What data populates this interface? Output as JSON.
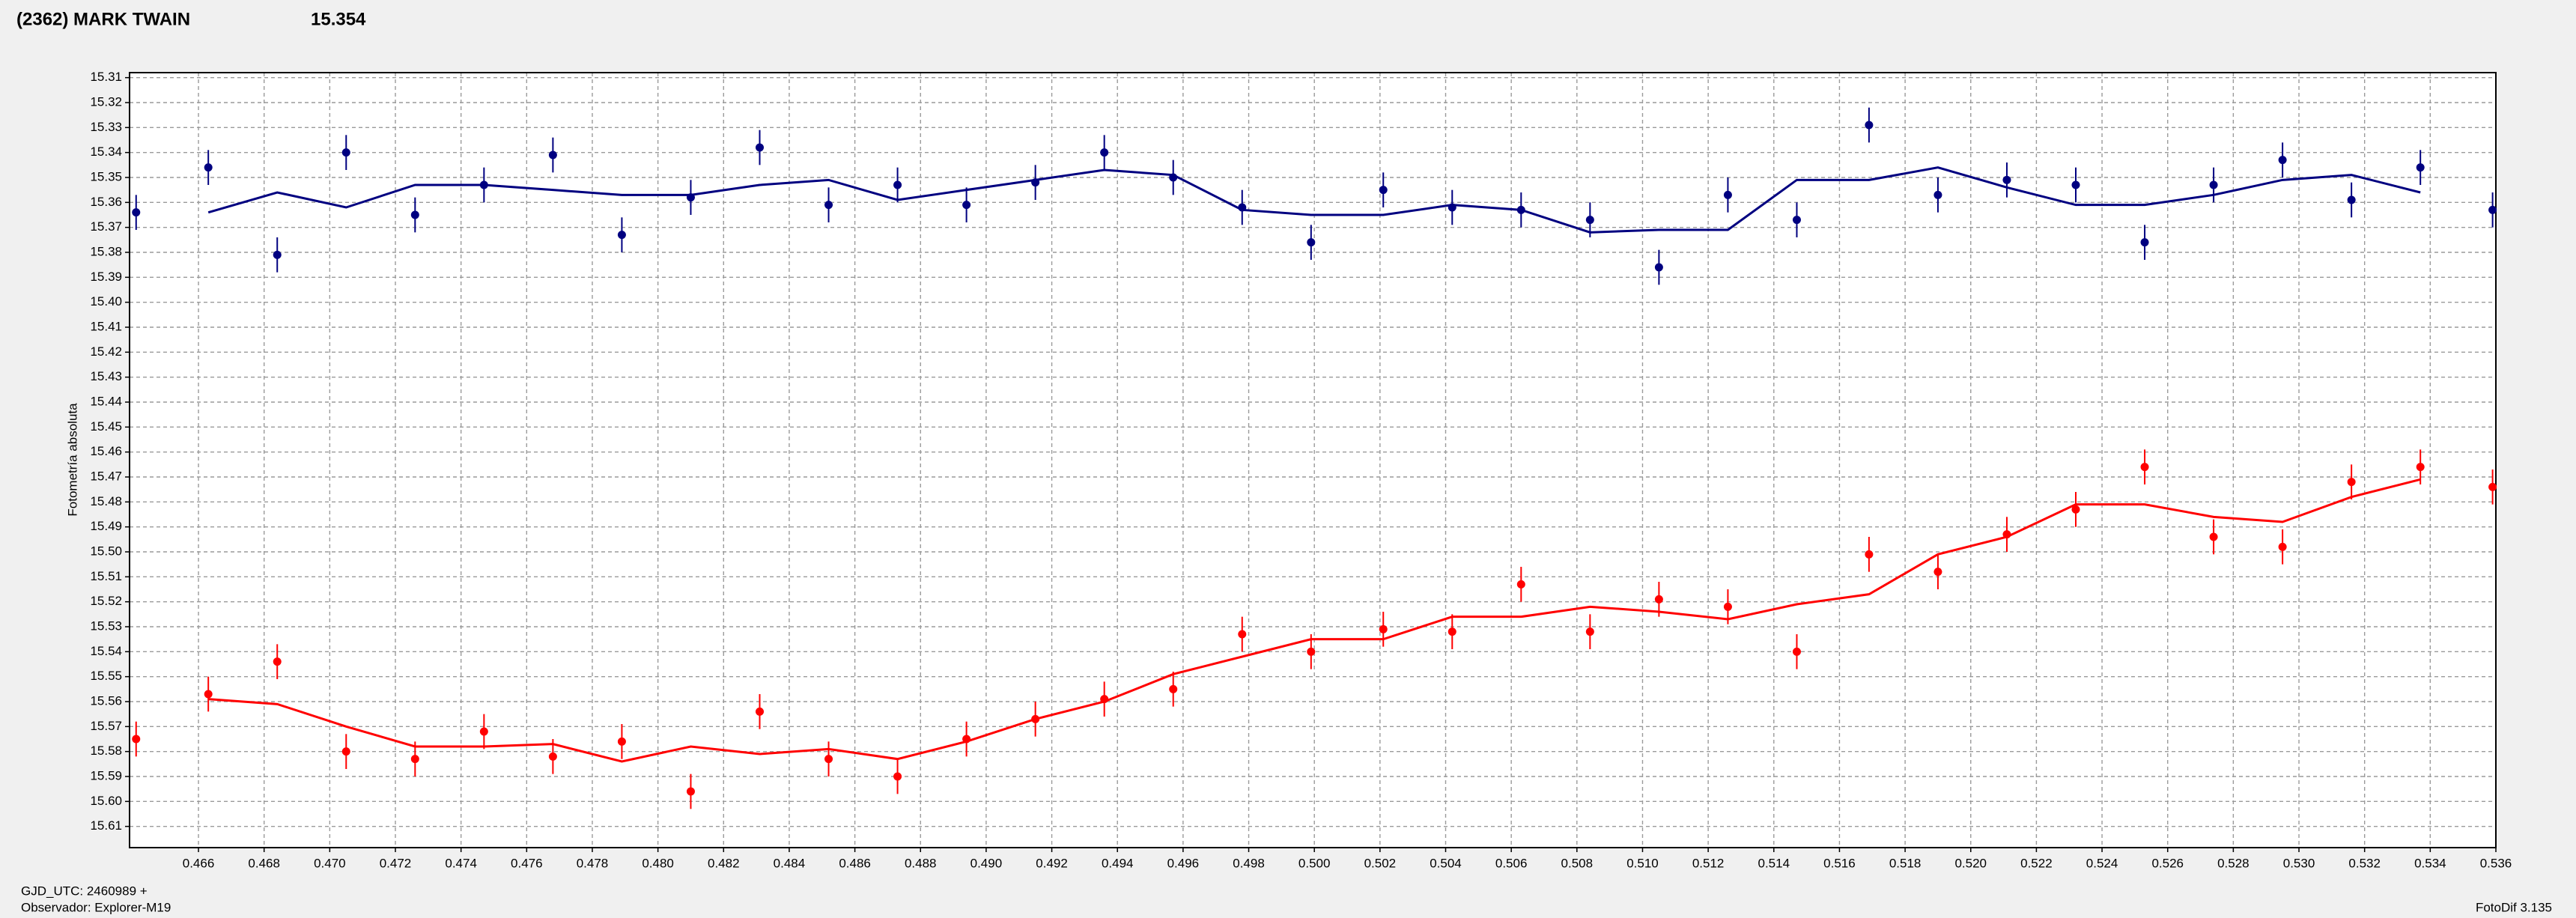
{
  "chart_data": {
    "type": "scatter",
    "title": "(2362) MARK TWAIN",
    "title_color": "#e00000",
    "subtitle": "15.354",
    "subtitle_color": "#000080",
    "ylabel": "Fotometría absoluta",
    "annotations": [
      "GJD_UTC: 2460989 +",
      "Observador: Explorer-M19"
    ],
    "footer": "FotoDif 3.135",
    "grid": true,
    "y_inverted": true,
    "xlim": [
      0.4639,
      0.536
    ],
    "ylim": [
      15.308,
      15.6185
    ],
    "xticks": [
      0.466,
      0.468,
      {
        "value": 0.47,
        "label": "0.470"
      },
      0.472,
      0.474,
      0.476,
      0.478,
      {
        "value": 0.48,
        "label": "0.480"
      },
      0.482,
      0.484,
      0.486,
      0.488,
      {
        "value": 0.49,
        "label": "0.490"
      },
      0.492,
      0.494,
      0.496,
      0.498,
      {
        "value": 0.5,
        "label": "0.500"
      },
      0.502,
      0.504,
      0.506,
      0.508,
      {
        "value": 0.51,
        "label": "0.510"
      },
      0.512,
      0.514,
      0.516,
      0.518,
      {
        "value": 0.52,
        "label": "0.520"
      },
      0.522,
      0.524,
      0.526,
      0.528,
      {
        "value": 0.53,
        "label": "0.530"
      },
      0.532,
      0.534,
      0.536
    ],
    "yticks": [
      15.31,
      15.32,
      15.33,
      15.34,
      15.35,
      15.36,
      15.37,
      15.38,
      15.39,
      {
        "value": 15.4,
        "label": "15.40"
      },
      15.41,
      15.42,
      15.43,
      15.44,
      15.45,
      15.46,
      15.47,
      15.48,
      15.49,
      {
        "value": 15.5,
        "label": "15.50"
      },
      15.51,
      15.52,
      15.53,
      15.54,
      15.55,
      15.56,
      15.57,
      15.58,
      15.59,
      {
        "value": 15.6,
        "label": "15.60"
      },
      15.61
    ],
    "x": [
      0.4641,
      0.4663,
      0.4684,
      0.4705,
      0.4726,
      0.4747,
      0.4768,
      0.4789,
      0.481,
      0.4831,
      0.4852,
      0.4873,
      0.4894,
      0.4915,
      0.4936,
      0.4957,
      0.4978,
      0.4999,
      0.5021,
      0.5042,
      0.5063,
      0.5084,
      0.5105,
      0.5126,
      0.5147,
      0.5169,
      0.519,
      0.5211,
      0.5232,
      0.5253,
      0.5274,
      0.5295,
      0.5316,
      0.5337,
      0.5359
    ],
    "series": [
      {
        "color": "#000080",
        "error": 0.007,
        "values": [
          15.364,
          15.346,
          15.381,
          15.34,
          15.365,
          15.353,
          15.341,
          15.373,
          15.358,
          15.338,
          15.361,
          15.353,
          15.361,
          15.352,
          15.34,
          15.35,
          15.362,
          15.376,
          15.355,
          15.362,
          15.363,
          15.367,
          15.386,
          15.357,
          15.367,
          15.329,
          15.357,
          15.351,
          15.353,
          15.376,
          15.353,
          15.343,
          15.359,
          15.346,
          15.363
        ],
        "fit": [
          null,
          15.364,
          15.356,
          15.362,
          15.353,
          15.353,
          15.355,
          15.357,
          15.357,
          15.353,
          15.351,
          15.359,
          15.355,
          15.351,
          15.347,
          15.349,
          15.363,
          15.365,
          15.365,
          15.361,
          15.363,
          15.372,
          15.371,
          15.371,
          15.351,
          15.351,
          15.346,
          15.354,
          15.361,
          15.361,
          15.357,
          15.351,
          15.349,
          15.356,
          null
        ]
      },
      {
        "color": "#ff0000",
        "error": 0.007,
        "values": [
          15.575,
          15.557,
          15.544,
          15.58,
          15.583,
          15.572,
          15.582,
          15.576,
          15.596,
          15.564,
          15.583,
          15.59,
          15.575,
          15.567,
          15.559,
          15.555,
          15.533,
          15.54,
          15.531,
          15.532,
          15.513,
          15.532,
          15.519,
          15.522,
          15.54,
          15.501,
          15.508,
          15.493,
          15.483,
          15.466,
          15.494,
          15.498,
          15.472,
          15.466,
          15.474
        ],
        "fit": [
          null,
          15.559,
          15.561,
          15.57,
          15.578,
          15.578,
          15.577,
          15.584,
          15.578,
          15.581,
          15.579,
          15.583,
          15.576,
          15.567,
          15.56,
          15.549,
          15.542,
          15.535,
          15.535,
          15.526,
          15.526,
          15.522,
          15.524,
          15.527,
          15.521,
          15.517,
          15.501,
          15.494,
          15.481,
          15.481,
          15.486,
          15.488,
          15.478,
          15.471,
          null
        ]
      }
    ]
  }
}
